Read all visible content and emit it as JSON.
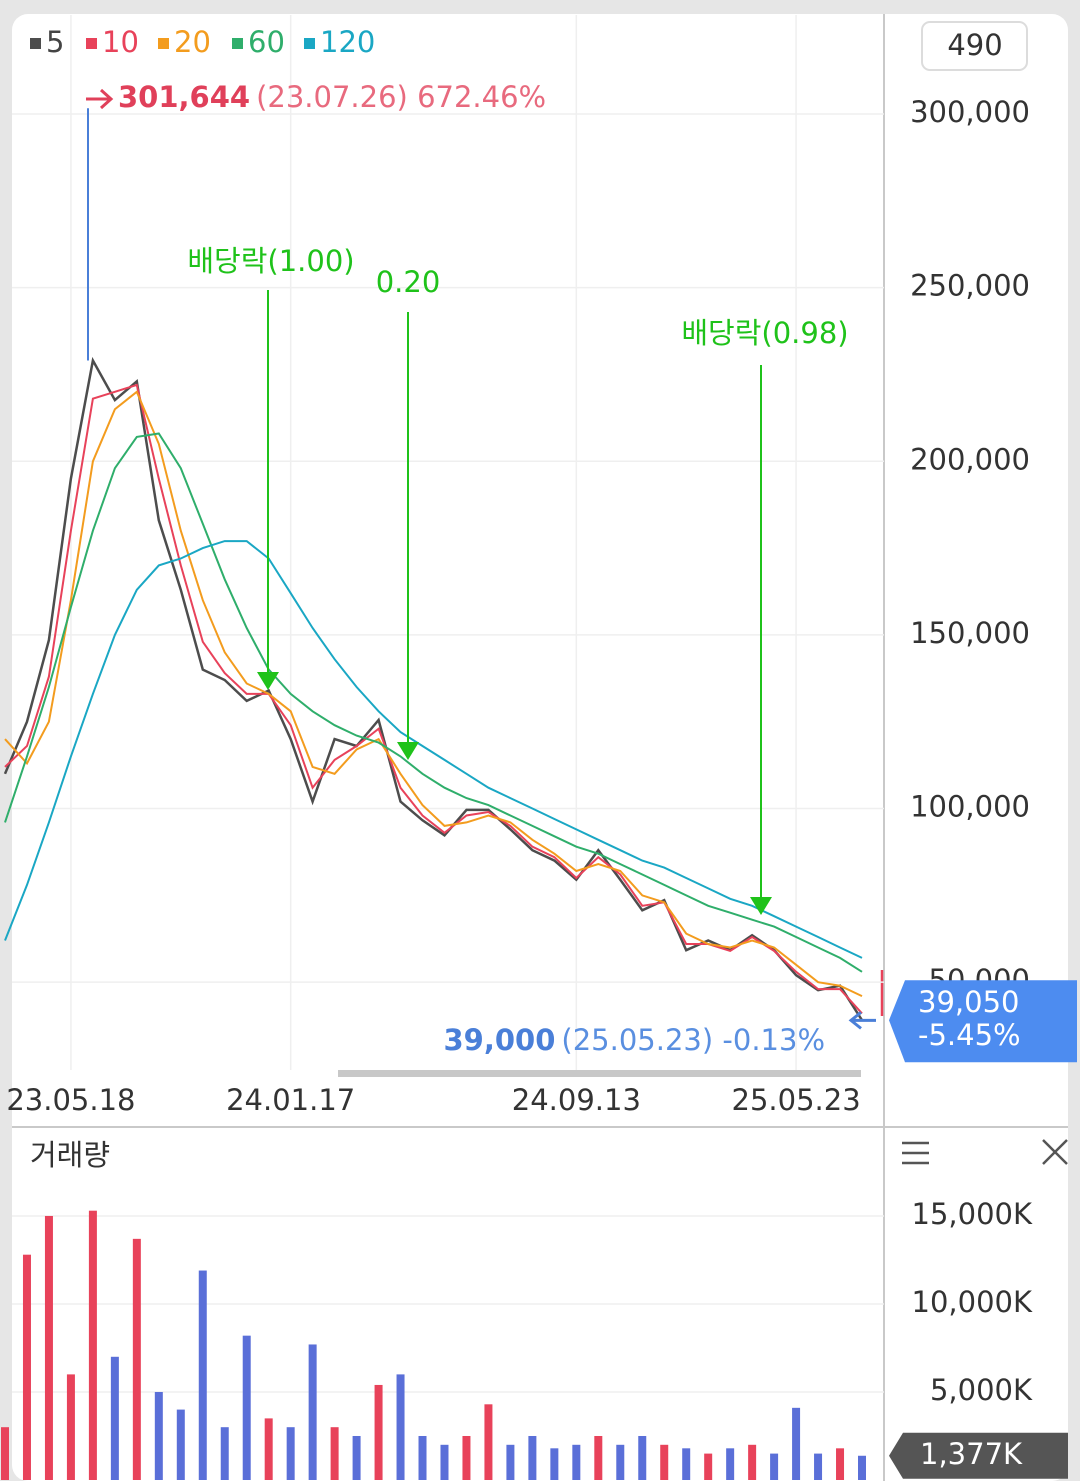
{
  "controls": {
    "period": 490
  },
  "chart_data": [
    {
      "type": "line",
      "categories": [
        null,
        null,
        null,
        "23.05.18",
        null,
        null,
        null,
        null,
        null,
        null,
        null,
        null,
        null,
        "24.01.17",
        null,
        null,
        null,
        null,
        null,
        null,
        null,
        null,
        null,
        null,
        null,
        null,
        "24.09.13",
        null,
        null,
        null,
        null,
        null,
        null,
        null,
        null,
        null,
        "25.05.23",
        null,
        null,
        null
      ],
      "series": [
        {
          "name": "5",
          "color": "#4d4d4d",
          "values": [
            110000,
            125000,
            148500,
            195000,
            229000,
            217600,
            223000,
            183000,
            163000,
            140000,
            137000,
            131000,
            134000,
            120000,
            102000,
            120000,
            118000,
            125500,
            102000,
            96600,
            92300,
            99600,
            99600,
            94000,
            88000,
            85000,
            79500,
            88000,
            79500,
            70700,
            73600,
            59200,
            62000,
            59200,
            63500,
            59200,
            52000,
            47700,
            49000,
            39050
          ]
        },
        {
          "name": "10",
          "color": "#e8425a",
          "values": [
            112000,
            118000,
            138000,
            180000,
            218000,
            220000,
            222000,
            195000,
            170000,
            148000,
            139000,
            133000,
            133000,
            124000,
            106000,
            114000,
            118000,
            123000,
            106000,
            98000,
            93000,
            98000,
            99000,
            95000,
            89000,
            86000,
            80000,
            86000,
            81000,
            72000,
            73000,
            61000,
            61000,
            59000,
            63000,
            59000,
            53000,
            48000,
            48000,
            41000
          ]
        },
        {
          "name": "20",
          "color": "#f39c1e",
          "values": [
            120000,
            113000,
            125000,
            160000,
            200000,
            215000,
            220000,
            205000,
            180000,
            160000,
            145000,
            136000,
            133000,
            128000,
            112000,
            110000,
            117000,
            120000,
            110000,
            101000,
            95000,
            96000,
            98000,
            96000,
            91000,
            87000,
            82000,
            84000,
            82000,
            75000,
            73000,
            64000,
            61000,
            60000,
            62000,
            60000,
            55000,
            50000,
            49000,
            46000
          ]
        },
        {
          "name": "60",
          "color": "#2fae6b",
          "values": [
            96000,
            115000,
            135000,
            158000,
            180000,
            198000,
            207000,
            208000,
            198000,
            182000,
            166000,
            152000,
            140000,
            133000,
            128000,
            124000,
            121000,
            119000,
            115000,
            110000,
            106000,
            103000,
            101000,
            98000,
            95000,
            92000,
            89000,
            87000,
            84000,
            81000,
            78000,
            75000,
            72000,
            70000,
            68000,
            66000,
            63000,
            60000,
            57000,
            53000
          ]
        },
        {
          "name": "120",
          "color": "#1aa7c4",
          "values": [
            62000,
            78000,
            96000,
            115000,
            133000,
            150000,
            163000,
            170000,
            172000,
            175000,
            177000,
            177000,
            172000,
            162000,
            152000,
            143000,
            135000,
            128000,
            122000,
            118000,
            114000,
            110000,
            106000,
            103000,
            100000,
            97000,
            94000,
            91000,
            88000,
            85000,
            83000,
            80000,
            77000,
            74000,
            72000,
            69000,
            66000,
            63000,
            60000,
            57000
          ]
        }
      ],
      "ylim": [
        25000,
        328500
      ],
      "yticks": [
        {
          "value": 50000,
          "label": "50,000"
        },
        {
          "value": 100000,
          "label": "100,000"
        },
        {
          "value": 150000,
          "label": "150,000"
        },
        {
          "value": 200000,
          "label": "200,000"
        },
        {
          "value": 250000,
          "label": "250,000"
        },
        {
          "value": 300000,
          "label": "300,000"
        }
      ],
      "grid": true,
      "high": {
        "value": 301644,
        "label": "301,644",
        "detail": "(23.07.26) 672.46%"
      },
      "low": {
        "value": 39000,
        "label": "39,000",
        "detail": "(25.05.23) -0.13%"
      },
      "current": {
        "value": 39050,
        "label": "39,050",
        "change": "-5.45%"
      },
      "events": [
        {
          "label": "배당락(1.00)"
        },
        {
          "label": "0.20"
        },
        {
          "label": "배당락(0.98)"
        }
      ],
      "event_color": "#1fc21a"
    },
    {
      "type": "bar",
      "title": "거래량",
      "values": [
        3000,
        12800,
        15000,
        6000,
        15300,
        7000,
        13700,
        5000,
        4000,
        11900,
        3000,
        8200,
        3500,
        3000,
        7700,
        3000,
        2500,
        5400,
        6000,
        2500,
        2000,
        2500,
        4300,
        2000,
        2500,
        1800,
        2000,
        2500,
        2000,
        2500,
        2000,
        1800,
        1500,
        1800,
        2000,
        1500,
        4100,
        1500,
        1800,
        1377
      ],
      "value_labels": [
        null,
        null,
        null,
        null,
        null,
        null,
        null,
        null,
        null,
        null,
        null,
        null,
        null,
        null,
        null,
        null,
        null,
        null,
        null,
        null,
        null,
        null,
        null,
        null,
        null,
        null,
        null,
        null,
        null,
        null,
        null,
        null,
        null,
        null,
        null,
        null,
        null,
        null,
        null,
        "1,377K"
      ],
      "color": "#e8425a",
      "color_down": "#5a6fd8",
      "ylim": [
        0,
        19600
      ],
      "yticks": [
        {
          "value": 5000,
          "label": "5,000K"
        },
        {
          "value": 10000,
          "label": "10,000K"
        },
        {
          "value": 15000,
          "label": "15,000K"
        }
      ],
      "grid": true
    }
  ]
}
